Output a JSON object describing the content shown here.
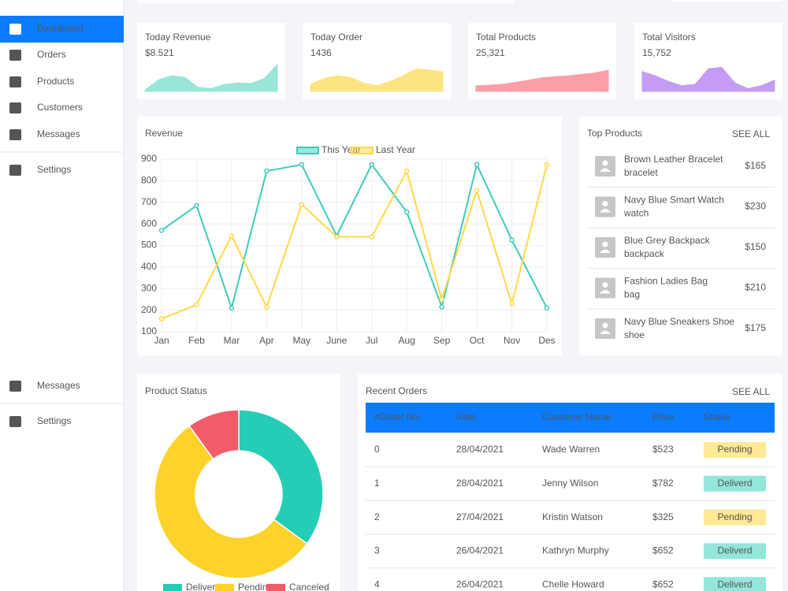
{
  "menu": [
    {
      "label": "Dashboard",
      "active": true
    },
    {
      "label": "Orders"
    },
    {
      "label": "Products"
    },
    {
      "label": "Customers"
    },
    {
      "label": "Messages"
    },
    {
      "label": "Settings"
    }
  ],
  "menu_lower": [
    {
      "label": "Messages"
    },
    {
      "label": "Settings"
    }
  ],
  "stats": [
    {
      "title": "Today Revenue",
      "value": "$8.521",
      "color": "#98e6da",
      "ylim": [
        0,
        100
      ],
      "sparkline": [
        5,
        40,
        55,
        50,
        15,
        10,
        25,
        30,
        28,
        45,
        95
      ]
    },
    {
      "title": "Today Order",
      "value": "1436",
      "color": "#fee481",
      "ylim": [
        0,
        100
      ],
      "sparkline": [
        25,
        45,
        55,
        50,
        30,
        20,
        35,
        55,
        80,
        75,
        70
      ]
    },
    {
      "title": "Total Products",
      "value": "25,321",
      "color": "#fb9ea6",
      "ylim": [
        0,
        100
      ],
      "sparkline": [
        20,
        22,
        25,
        32,
        40,
        48,
        52,
        55,
        60,
        65,
        75
      ]
    },
    {
      "title": "Total Visitors",
      "value": "15,752",
      "color": "#c59cf5",
      "ylim": [
        0,
        100
      ],
      "sparkline": [
        70,
        55,
        35,
        20,
        25,
        80,
        85,
        30,
        10,
        20,
        40
      ]
    }
  ],
  "revenue": {
    "type": "line",
    "title": "Revenue",
    "categories": [
      "Jan",
      "Feb",
      "Mar",
      "Apr",
      "May",
      "June",
      "Jul",
      "Aug",
      "Sep",
      "Oct",
      "Nov",
      "Des"
    ],
    "series": [
      {
        "name": "This Year",
        "color": "#3ecbbb",
        "values": [
          570,
          685,
          210,
          845,
          875,
          545,
          875,
          655,
          215,
          875,
          525,
          210
        ]
      },
      {
        "name": "Last Year",
        "color": "#fdd94a",
        "values": [
          160,
          225,
          545,
          215,
          690,
          540,
          540,
          845,
          250,
          755,
          230,
          875
        ]
      }
    ],
    "ylim": [
      100,
      900
    ],
    "yticks": [
      100,
      200,
      300,
      400,
      500,
      600,
      700,
      800,
      900
    ],
    "grid": true
  },
  "top_products": {
    "title": "Top Products",
    "see_all": "SEE ALL",
    "items": [
      {
        "name": "Brown Leather Bracelet",
        "category": "bracelet",
        "price": "$165"
      },
      {
        "name": "Navy Blue Smart Watch",
        "category": "watch",
        "price": "$230"
      },
      {
        "name": "Blue Grey Backpack",
        "category": "backpack",
        "price": "$150"
      },
      {
        "name": "Fashion Ladies Bag",
        "category": "bag",
        "price": "$210"
      },
      {
        "name": "Navy Blue Sneakers Shoe",
        "category": "shoe",
        "price": "$175"
      }
    ]
  },
  "product_status": {
    "type": "pie",
    "title": "Product Status",
    "categories": [
      "Deliverd",
      "Pending",
      "Canceled"
    ],
    "values": [
      35,
      55,
      10
    ],
    "colors": [
      "#26cdb6",
      "#fdd32b",
      "#f45b69"
    ]
  },
  "recent_orders": {
    "title": "Recent Orders",
    "see_all": "SEE ALL",
    "columns": [
      "#Order No.",
      "Date",
      "Customer Name",
      "Price",
      "Status"
    ],
    "rows": [
      [
        "0",
        "28/04/2021",
        "Wade Warren",
        "$523",
        "Pending"
      ],
      [
        "1",
        "28/04/2021",
        "Jenny Wilson",
        "$782",
        "Deliverd"
      ],
      [
        "2",
        "27/04/2021",
        "Kristin Watson",
        "$325",
        "Pending"
      ],
      [
        "3",
        "26/04/2021",
        "Kathryn Murphy",
        "$652",
        "Deliverd"
      ],
      [
        "4",
        "26/04/2021",
        "Chelle Howard",
        "$652",
        "Deliverd"
      ]
    ]
  }
}
